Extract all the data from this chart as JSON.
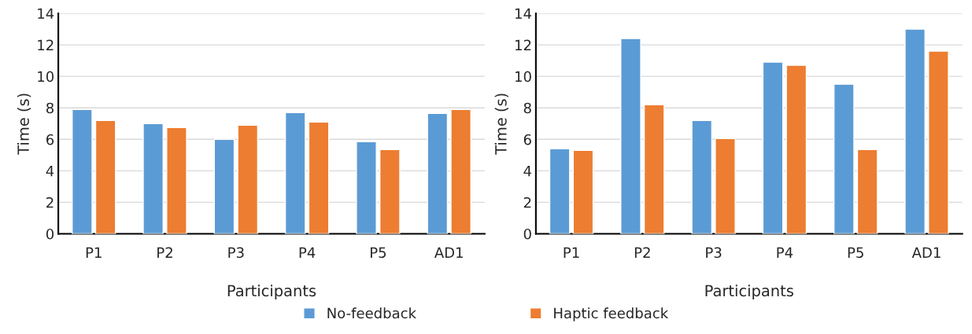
{
  "chart_data": [
    {
      "type": "bar",
      "categories": [
        "P1",
        "P2",
        "P3",
        "P4",
        "P5",
        "AD1"
      ],
      "xlabel": "Participants",
      "ylabel": "Time (s)",
      "ylim": [
        0,
        14
      ],
      "yticks": [
        0,
        2,
        4,
        6,
        8,
        10,
        12,
        14
      ],
      "grid": "y",
      "legend": "bottom",
      "series": [
        {
          "name": "No-feedback",
          "color": "#5b9bd5",
          "values": [
            7.9,
            7.0,
            6.0,
            7.7,
            5.85,
            7.65
          ]
        },
        {
          "name": "Haptic feedback",
          "color": "#ed7d31",
          "values": [
            7.2,
            6.75,
            6.9,
            7.1,
            5.35,
            7.9
          ]
        }
      ]
    },
    {
      "type": "bar",
      "categories": [
        "P1",
        "P2",
        "P3",
        "P4",
        "P5",
        "AD1"
      ],
      "xlabel": "Participants",
      "ylabel": "Time (s)",
      "ylim": [
        0,
        14
      ],
      "yticks": [
        0,
        2,
        4,
        6,
        8,
        10,
        12,
        14
      ],
      "grid": "y",
      "legend": "bottom",
      "series": [
        {
          "name": "No-feedback",
          "color": "#5b9bd5",
          "values": [
            5.4,
            12.4,
            7.2,
            10.9,
            9.5,
            13.0
          ]
        },
        {
          "name": "Haptic feedback",
          "color": "#ed7d31",
          "values": [
            5.3,
            8.2,
            6.05,
            10.7,
            5.35,
            11.6
          ]
        }
      ]
    }
  ]
}
